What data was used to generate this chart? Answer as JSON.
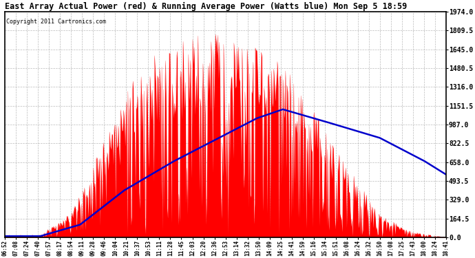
{
  "title": "East Array Actual Power (red) & Running Average Power (Watts blue) Mon Sep 5 18:59",
  "copyright": "Copyright 2011 Cartronics.com",
  "bg_color": "#ffffff",
  "plot_bg_color": "#ffffff",
  "grid_color": "#aaaaaa",
  "bar_color": "#ff0000",
  "avg_color": "#0000cc",
  "ymax": 1974.0,
  "ymin": 0.0,
  "yticks": [
    0.0,
    164.5,
    329.0,
    493.5,
    658.0,
    822.5,
    987.0,
    1151.5,
    1316.0,
    1480.5,
    1645.0,
    1809.5,
    1974.0
  ],
  "x_labels": [
    "06:52",
    "07:08",
    "07:24",
    "07:40",
    "07:57",
    "08:17",
    "08:54",
    "09:11",
    "09:28",
    "09:46",
    "10:04",
    "10:21",
    "10:37",
    "10:53",
    "11:11",
    "11:28",
    "11:45",
    "12:03",
    "12:20",
    "12:36",
    "12:53",
    "13:14",
    "13:32",
    "13:50",
    "14:09",
    "14:25",
    "14:41",
    "14:59",
    "15:16",
    "15:34",
    "15:51",
    "16:08",
    "16:24",
    "16:32",
    "16:50",
    "17:08",
    "17:25",
    "17:43",
    "18:00",
    "18:24",
    "18:41"
  ],
  "num_points": 600
}
